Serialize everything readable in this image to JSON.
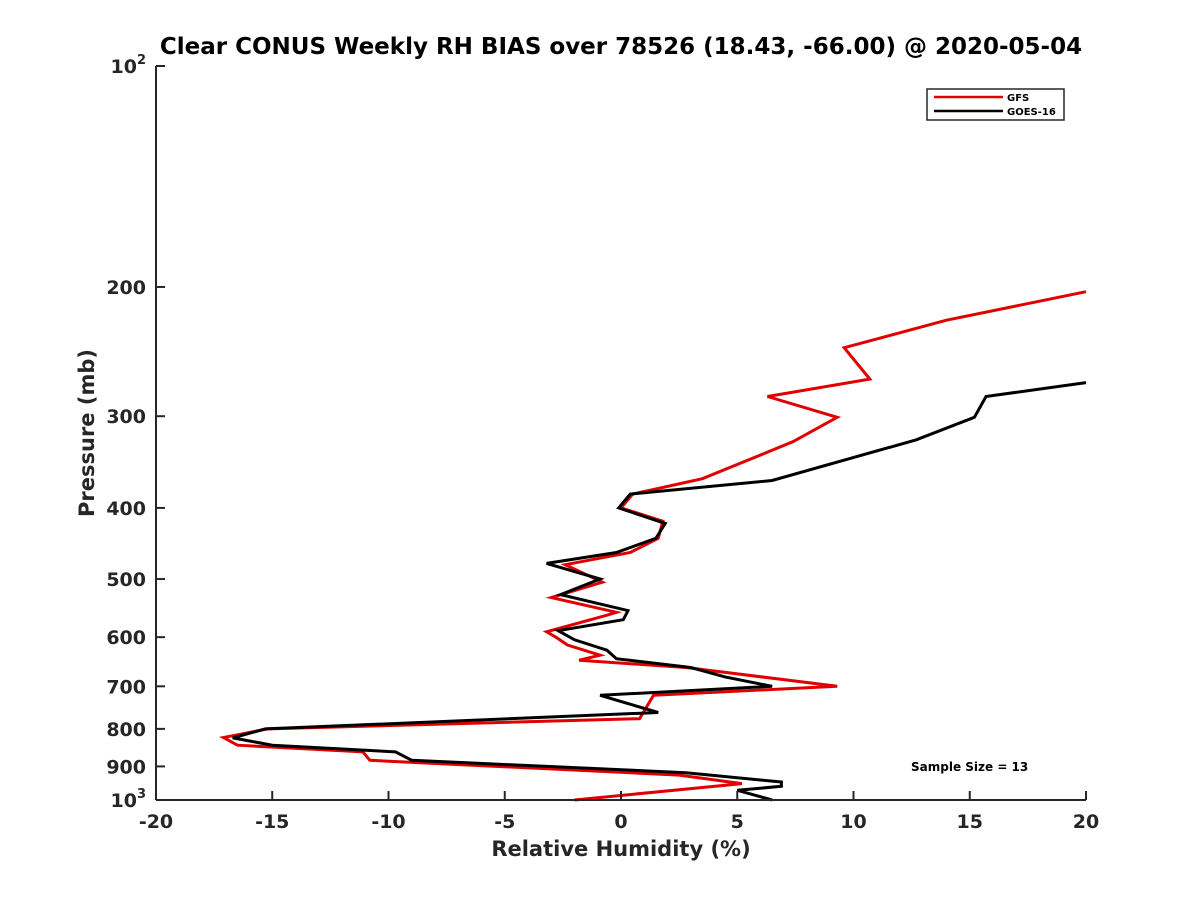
{
  "chart_data": {
    "type": "line",
    "title": "Clear CONUS Weekly RH BIAS over 78526 (18.43, -66.00) @ 2020-05-04",
    "xlabel": "Relative Humidity (%)",
    "ylabel": "Pressure (mb)",
    "xlim": [
      -20,
      20
    ],
    "ylim": [
      100,
      1000
    ],
    "y_scale": "log",
    "y_reversed": true,
    "grid": false,
    "legend_position": "top-right",
    "x_ticks": [
      "-20",
      "-15",
      "-10",
      "-5",
      "0",
      "5",
      "10",
      "15",
      "20"
    ],
    "y_ticks": [
      {
        "value": 100,
        "base": "10",
        "exp": "2"
      },
      {
        "value": 200,
        "label": "200"
      },
      {
        "value": 300,
        "label": "300"
      },
      {
        "value": 400,
        "label": "400"
      },
      {
        "value": 500,
        "label": "500"
      },
      {
        "value": 600,
        "label": "600"
      },
      {
        "value": 700,
        "label": "700"
      },
      {
        "value": 800,
        "label": "800"
      },
      {
        "value": 900,
        "label": "900"
      },
      {
        "value": 1000,
        "base": "10",
        "exp": "3"
      }
    ],
    "annotation": "Sample Size = 13",
    "series": [
      {
        "name": "GFS",
        "color": "#e00000",
        "points": [
          [
            20.0,
            203
          ],
          [
            14.0,
            222
          ],
          [
            9.6,
            242
          ],
          [
            10.7,
            267
          ],
          [
            6.3,
            282
          ],
          [
            9.3,
            301
          ],
          [
            7.4,
            325
          ],
          [
            3.5,
            365
          ],
          [
            0.5,
            383
          ],
          [
            0.0,
            400
          ],
          [
            1.8,
            417
          ],
          [
            1.6,
            440
          ],
          [
            0.4,
            460
          ],
          [
            -2.4,
            478
          ],
          [
            -0.8,
            505
          ],
          [
            -3.0,
            530
          ],
          [
            -0.2,
            555
          ],
          [
            -0.6,
            560
          ],
          [
            -3.2,
            590
          ],
          [
            -2.8,
            600
          ],
          [
            -2.3,
            615
          ],
          [
            -0.9,
            635
          ],
          [
            -1.8,
            645
          ],
          [
            2.8,
            660
          ],
          [
            9.3,
            700
          ],
          [
            1.4,
            720
          ],
          [
            0.8,
            775
          ],
          [
            -15.2,
            800
          ],
          [
            -17.1,
            822
          ],
          [
            -16.5,
            842
          ],
          [
            -11.1,
            860
          ],
          [
            -10.8,
            883
          ],
          [
            2.5,
            925
          ],
          [
            5.2,
            950
          ],
          [
            3.0,
            965
          ],
          [
            -2.0,
            1000
          ]
        ]
      },
      {
        "name": "GOES-16",
        "color": "#000000",
        "points": [
          [
            20.0,
            270
          ],
          [
            15.7,
            282
          ],
          [
            15.2,
            301
          ],
          [
            12.7,
            323
          ],
          [
            6.5,
            367
          ],
          [
            0.4,
            383
          ],
          [
            -0.1,
            400
          ],
          [
            1.9,
            420
          ],
          [
            1.5,
            440
          ],
          [
            -0.2,
            460
          ],
          [
            -3.2,
            476
          ],
          [
            -0.9,
            500
          ],
          [
            -2.6,
            525
          ],
          [
            0.3,
            552
          ],
          [
            0.1,
            568
          ],
          [
            -2.7,
            588
          ],
          [
            -2.0,
            605
          ],
          [
            -0.6,
            625
          ],
          [
            -0.2,
            642
          ],
          [
            3.0,
            660
          ],
          [
            4.5,
            680
          ],
          [
            6.5,
            700
          ],
          [
            -0.9,
            720
          ],
          [
            1.6,
            760
          ],
          [
            -15.3,
            800
          ],
          [
            -16.7,
            823
          ],
          [
            -15.0,
            842
          ],
          [
            -9.7,
            860
          ],
          [
            -9.0,
            883
          ],
          [
            2.8,
            918
          ],
          [
            6.9,
            945
          ],
          [
            6.9,
            958
          ],
          [
            5.0,
            970
          ],
          [
            6.5,
            1000
          ]
        ]
      }
    ]
  }
}
